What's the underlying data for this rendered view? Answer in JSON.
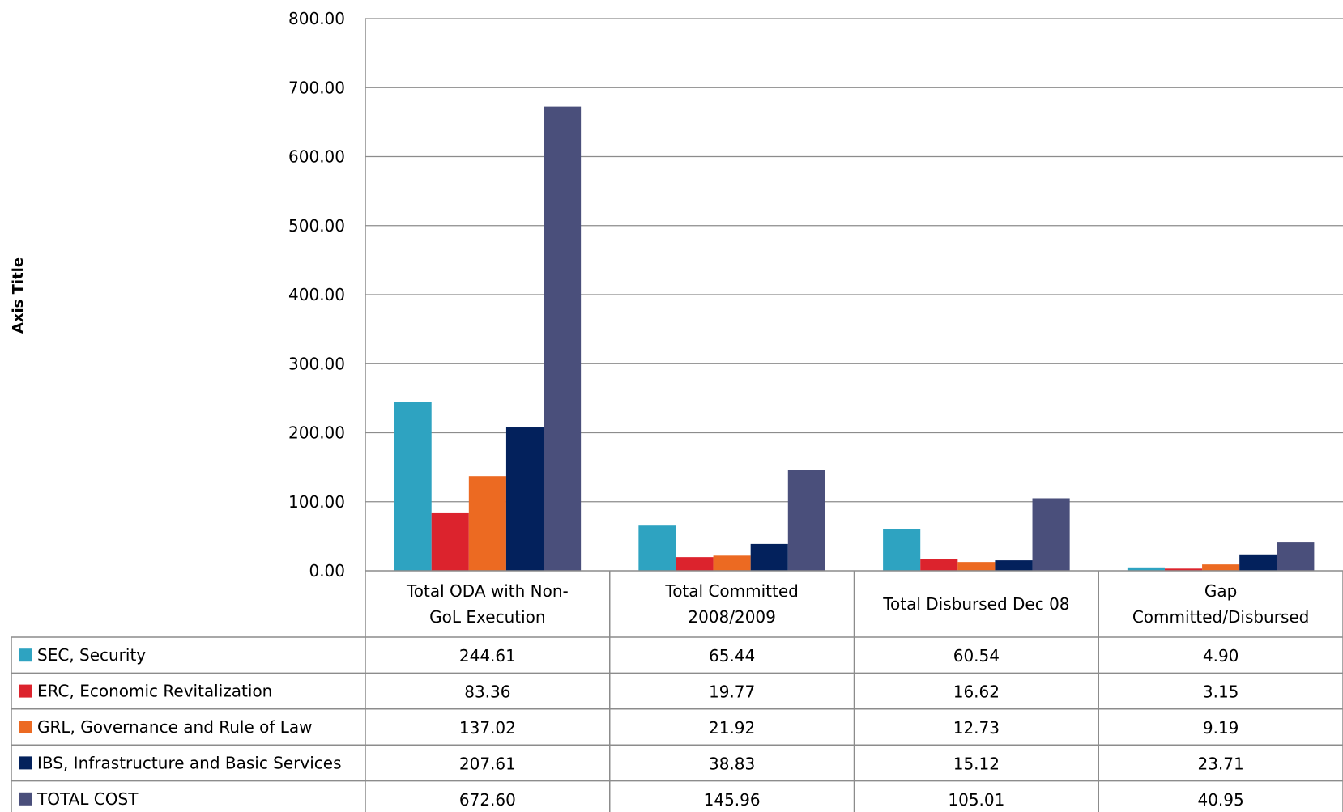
{
  "chart_data": {
    "type": "bar",
    "title": "",
    "xlabel": "",
    "ylabel": "Axis Title",
    "ylim": [
      0,
      800
    ],
    "y_ticks": [
      "0.00",
      "100.00",
      "200.00",
      "300.00",
      "400.00",
      "500.00",
      "600.00",
      "700.00",
      "800.00"
    ],
    "grid": true,
    "legend": "data-table",
    "categories": [
      [
        "Total ODA with Non-",
        "GoL Execution"
      ],
      [
        "Total Committed",
        "2008/2009"
      ],
      [
        "Total Disbursed Dec 08"
      ],
      [
        "Gap",
        "Committed/Disbursed"
      ]
    ],
    "series": [
      {
        "name": "SEC, Security",
        "color": "#2EA3C1",
        "values": [
          244.61,
          65.44,
          60.54,
          4.9
        ],
        "labels": [
          "244.61",
          "65.44",
          "60.54",
          "4.90"
        ]
      },
      {
        "name": "ERC, Economic Revitalization",
        "color": "#DC232D",
        "values": [
          83.36,
          19.77,
          16.62,
          3.15
        ],
        "labels": [
          "83.36",
          "19.77",
          "16.62",
          "3.15"
        ]
      },
      {
        "name": "GRL, Governance and Rule of Law",
        "color": "#EC6A22",
        "values": [
          137.02,
          21.92,
          12.73,
          9.19
        ],
        "labels": [
          "137.02",
          "21.92",
          "12.73",
          "9.19"
        ]
      },
      {
        "name": "IBS, Infrastructure and Basic Services",
        "color": "#03215C",
        "values": [
          207.61,
          38.83,
          15.12,
          23.71
        ],
        "labels": [
          "207.61",
          "38.83",
          "15.12",
          "23.71"
        ]
      },
      {
        "name": "TOTAL COST",
        "color": "#4A4F7B",
        "values": [
          672.6,
          145.96,
          105.01,
          40.95
        ],
        "labels": [
          "672.60",
          "145.96",
          "105.01",
          "40.95"
        ]
      }
    ]
  }
}
